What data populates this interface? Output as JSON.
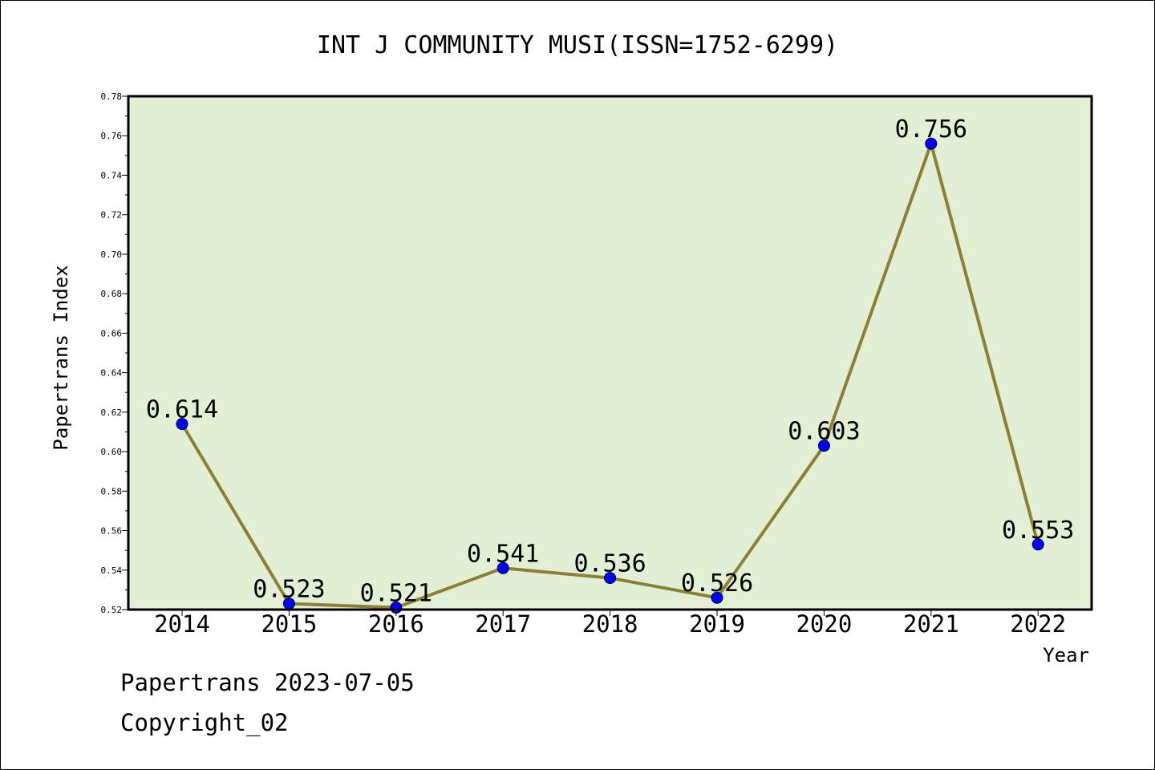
{
  "chart_data": {
    "type": "line",
    "title": "INT J COMMUNITY MUSI(ISSN=1752-6299)",
    "xlabel": "Year",
    "ylabel": "Papertrans Index",
    "categories": [
      "2014",
      "2015",
      "2016",
      "2017",
      "2018",
      "2019",
      "2020",
      "2021",
      "2022"
    ],
    "series": [
      {
        "values": [
          0.614,
          0.523,
          0.521,
          0.541,
          0.536,
          0.526,
          0.603,
          0.756,
          0.553
        ]
      }
    ],
    "data_labels": [
      "0.614",
      "0.523",
      "0.521",
      "0.541",
      "0.536",
      "0.526",
      "0.603",
      "0.756",
      "0.553"
    ],
    "ylim": [
      0.52,
      0.78
    ],
    "yticks": [
      0.52,
      0.54,
      0.56,
      0.58,
      0.6,
      0.62,
      0.64,
      0.66,
      0.68,
      0.7,
      0.72,
      0.74,
      0.76,
      0.78
    ],
    "ytick_labels": [
      "0.52",
      "0.54",
      "0.56",
      "0.58",
      "0.60",
      "0.62",
      "0.64",
      "0.66",
      "0.68",
      "0.70",
      "0.72",
      "0.74",
      "0.76",
      "0.78"
    ],
    "grid": false,
    "legend": "none",
    "colors": {
      "plot_background": "#e2efd5",
      "line": "#8b8035",
      "marker": "#0000ff"
    }
  },
  "footer": {
    "date_line": "Papertrans 2023-07-05",
    "copyright": "Copyright_02"
  }
}
